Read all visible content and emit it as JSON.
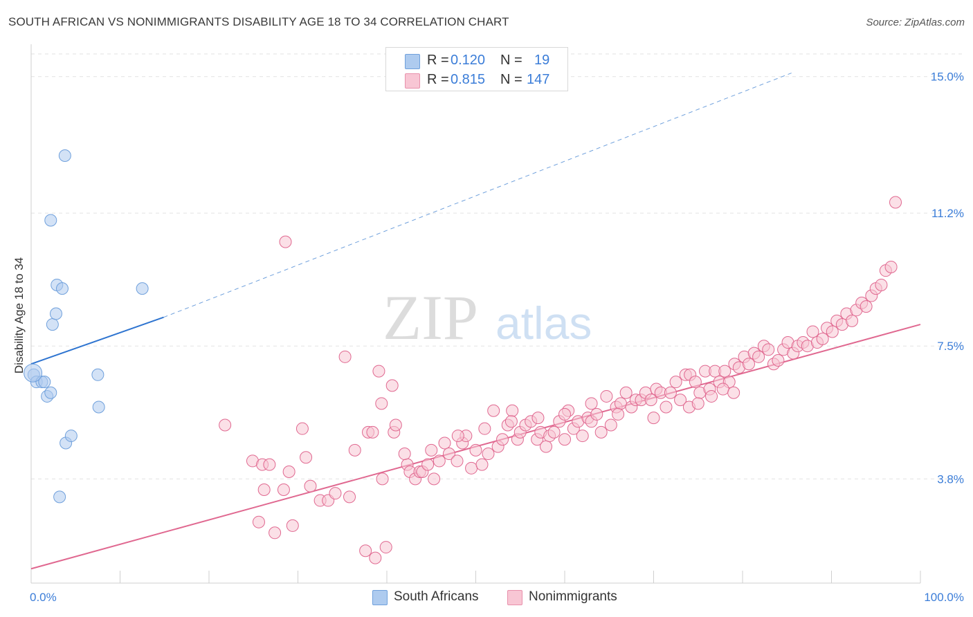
{
  "title": "SOUTH AFRICAN VS NONIMMIGRANTS DISABILITY AGE 18 TO 34 CORRELATION CHART",
  "source": "Source: ZipAtlas.com",
  "watermark": {
    "zip": "ZIP",
    "atlas": "atlas"
  },
  "legend": {
    "rows": [
      {
        "r_label": "R =",
        "r_value": "0.120",
        "n_label": "N =",
        "n_value": "19",
        "color": "#aecbef",
        "border": "#6fa0dc"
      },
      {
        "r_label": "R =",
        "r_value": "0.815",
        "n_label": "N =",
        "n_value": "147",
        "color": "#f8c6d4",
        "border": "#e890ab"
      }
    ]
  },
  "bottom_legend": [
    {
      "label": "South Africans",
      "color": "#aecbef",
      "border": "#6fa0dc"
    },
    {
      "label": "Nonimmigrants",
      "color": "#f8c6d4",
      "border": "#e890ab"
    }
  ],
  "chart_data": {
    "type": "scatter",
    "title": "SOUTH AFRICAN VS NONIMMIGRANTS DISABILITY AGE 18 TO 34 CORRELATION CHART",
    "xlabel": "",
    "ylabel": "Disability Age 18 to 34",
    "x_tick_labels": [
      "0.0%",
      "100.0%"
    ],
    "y_tick_labels": [
      "3.8%",
      "7.5%",
      "11.2%",
      "15.0%"
    ],
    "y_ticks": [
      3.8,
      7.5,
      11.2,
      15.0
    ],
    "xlim": [
      0,
      100
    ],
    "ylim": [
      0.9,
      15.9
    ],
    "grid": true,
    "series": [
      {
        "name": "South Africans",
        "color": "#6fa0dc",
        "fill": "#aecbef",
        "points": [
          [
            0.3,
            6.7
          ],
          [
            0.6,
            6.5
          ],
          [
            1.2,
            6.5
          ],
          [
            1.5,
            6.5
          ],
          [
            1.8,
            6.1
          ],
          [
            2.2,
            6.2
          ],
          [
            2.2,
            11.0
          ],
          [
            2.4,
            8.1
          ],
          [
            2.8,
            8.4
          ],
          [
            2.9,
            9.2
          ],
          [
            3.2,
            3.3
          ],
          [
            3.5,
            9.1
          ],
          [
            3.8,
            12.8
          ],
          [
            3.9,
            4.8
          ],
          [
            4.5,
            5.0
          ],
          [
            7.5,
            6.7
          ],
          [
            7.6,
            5.8
          ],
          [
            12.5,
            9.1
          ],
          [
            0.2,
            6.75
          ]
        ],
        "trend": {
          "x": [
            0,
            14.9
          ],
          "y": [
            7.0,
            8.3
          ],
          "dashed_to": [
            85.5,
            15.1
          ]
        }
      },
      {
        "name": "Nonimmigrants",
        "color": "#e06890",
        "fill": "#f8c6d4",
        "points": [
          [
            21.8,
            5.3
          ],
          [
            24.9,
            4.3
          ],
          [
            25.6,
            2.6
          ],
          [
            26.0,
            4.2
          ],
          [
            26.2,
            3.5
          ],
          [
            26.8,
            4.2
          ],
          [
            27.4,
            2.3
          ],
          [
            28.4,
            3.5
          ],
          [
            29.0,
            4.0
          ],
          [
            29.4,
            2.5
          ],
          [
            30.5,
            5.2
          ],
          [
            30.9,
            4.4
          ],
          [
            31.4,
            3.6
          ],
          [
            32.5,
            3.2
          ],
          [
            33.4,
            3.2
          ],
          [
            34.2,
            3.4
          ],
          [
            35.3,
            7.2
          ],
          [
            35.8,
            3.3
          ],
          [
            36.4,
            4.6
          ],
          [
            37.6,
            1.8
          ],
          [
            37.9,
            5.1
          ],
          [
            38.4,
            5.1
          ],
          [
            38.7,
            1.6
          ],
          [
            39.1,
            6.8
          ],
          [
            39.4,
            5.9
          ],
          [
            39.5,
            3.8
          ],
          [
            40.6,
            6.4
          ],
          [
            40.8,
            5.1
          ],
          [
            41.0,
            5.3
          ],
          [
            42.3,
            4.2
          ],
          [
            42.6,
            4.0
          ],
          [
            43.2,
            3.8
          ],
          [
            43.7,
            4.0
          ],
          [
            44.0,
            4.0
          ],
          [
            44.6,
            4.2
          ],
          [
            45.3,
            3.8
          ],
          [
            45.9,
            4.3
          ],
          [
            46.5,
            4.8
          ],
          [
            47.0,
            4.5
          ],
          [
            47.9,
            4.3
          ],
          [
            48.5,
            4.8
          ],
          [
            48.9,
            5.0
          ],
          [
            49.5,
            4.1
          ],
          [
            50.0,
            4.6
          ],
          [
            50.7,
            4.2
          ],
          [
            51.4,
            4.5
          ],
          [
            52.0,
            5.7
          ],
          [
            52.5,
            4.7
          ],
          [
            53.0,
            4.9
          ],
          [
            53.6,
            5.3
          ],
          [
            54.1,
            5.7
          ],
          [
            54.7,
            4.9
          ],
          [
            55.0,
            5.1
          ],
          [
            55.6,
            5.3
          ],
          [
            56.2,
            5.4
          ],
          [
            56.9,
            4.9
          ],
          [
            57.3,
            5.1
          ],
          [
            57.9,
            4.7
          ],
          [
            58.3,
            5.0
          ],
          [
            58.8,
            5.1
          ],
          [
            59.4,
            5.4
          ],
          [
            60.0,
            4.9
          ],
          [
            60.4,
            5.7
          ],
          [
            61.0,
            5.2
          ],
          [
            61.5,
            5.4
          ],
          [
            62.0,
            5.0
          ],
          [
            62.6,
            5.5
          ],
          [
            63.0,
            5.4
          ],
          [
            63.6,
            5.6
          ],
          [
            64.1,
            5.1
          ],
          [
            64.7,
            6.1
          ],
          [
            65.2,
            5.3
          ],
          [
            65.8,
            5.8
          ],
          [
            66.3,
            5.9
          ],
          [
            66.9,
            6.2
          ],
          [
            67.5,
            5.8
          ],
          [
            68.0,
            6.0
          ],
          [
            68.6,
            6.0
          ],
          [
            69.1,
            6.2
          ],
          [
            69.7,
            6.0
          ],
          [
            70.3,
            6.3
          ],
          [
            70.8,
            6.2
          ],
          [
            71.4,
            5.8
          ],
          [
            71.9,
            6.2
          ],
          [
            72.5,
            6.5
          ],
          [
            73.0,
            6.0
          ],
          [
            73.6,
            6.7
          ],
          [
            74.1,
            6.7
          ],
          [
            74.7,
            6.5
          ],
          [
            75.2,
            6.2
          ],
          [
            75.8,
            6.8
          ],
          [
            76.3,
            6.3
          ],
          [
            76.9,
            6.8
          ],
          [
            77.4,
            6.5
          ],
          [
            78.0,
            6.8
          ],
          [
            78.5,
            6.5
          ],
          [
            79.1,
            7.0
          ],
          [
            79.6,
            6.9
          ],
          [
            80.2,
            7.2
          ],
          [
            80.7,
            7.0
          ],
          [
            81.3,
            7.3
          ],
          [
            81.8,
            7.2
          ],
          [
            82.4,
            7.5
          ],
          [
            82.9,
            7.4
          ],
          [
            83.5,
            7.0
          ],
          [
            84.0,
            7.1
          ],
          [
            84.6,
            7.4
          ],
          [
            85.1,
            7.6
          ],
          [
            85.7,
            7.3
          ],
          [
            86.2,
            7.5
          ],
          [
            86.8,
            7.6
          ],
          [
            87.3,
            7.5
          ],
          [
            87.9,
            7.9
          ],
          [
            88.4,
            7.6
          ],
          [
            89.0,
            7.7
          ],
          [
            89.5,
            8.0
          ],
          [
            90.1,
            7.9
          ],
          [
            90.6,
            8.2
          ],
          [
            91.2,
            8.1
          ],
          [
            91.7,
            8.4
          ],
          [
            92.3,
            8.2
          ],
          [
            92.8,
            8.5
          ],
          [
            93.4,
            8.7
          ],
          [
            93.9,
            8.6
          ],
          [
            94.5,
            8.9
          ],
          [
            95.0,
            9.1
          ],
          [
            95.6,
            9.2
          ],
          [
            96.1,
            9.6
          ],
          [
            96.7,
            9.7
          ],
          [
            97.2,
            11.5
          ],
          [
            74.0,
            5.8
          ],
          [
            75.0,
            5.9
          ],
          [
            76.5,
            6.1
          ],
          [
            77.8,
            6.3
          ],
          [
            79.0,
            6.2
          ],
          [
            70.0,
            5.5
          ],
          [
            66.0,
            5.6
          ],
          [
            63.0,
            5.9
          ],
          [
            60.0,
            5.6
          ],
          [
            57.0,
            5.5
          ],
          [
            54.0,
            5.4
          ],
          [
            51.0,
            5.2
          ],
          [
            48.0,
            5.0
          ],
          [
            45.0,
            4.6
          ],
          [
            42.0,
            4.5
          ],
          [
            28.6,
            10.4
          ],
          [
            39.9,
            1.9
          ]
        ],
        "trend": {
          "x": [
            0,
            100
          ],
          "y": [
            1.3,
            8.1
          ]
        }
      }
    ]
  }
}
